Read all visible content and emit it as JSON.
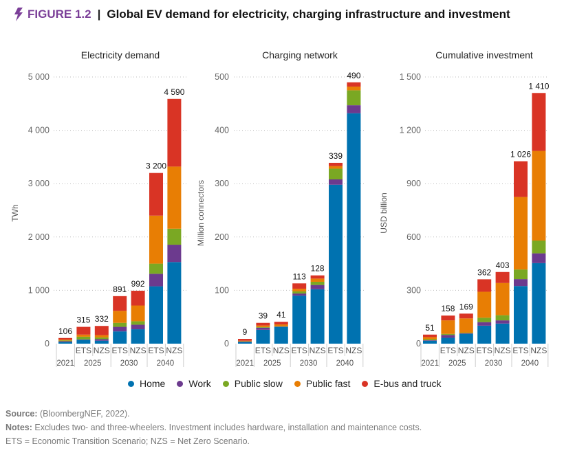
{
  "header": {
    "figure_label": "FIGURE 1.2",
    "separator": "|",
    "title": "Global EV demand for electricity, charging infrastructure and investment",
    "icon": "lightning-bolt-icon",
    "accent_color": "#7b3f98"
  },
  "legend": [
    {
      "name": "Home",
      "color": "#0072b0"
    },
    {
      "name": "Work",
      "color": "#6c3a8e"
    },
    {
      "name": "Public slow",
      "color": "#7aa823"
    },
    {
      "name": "Public fast",
      "color": "#e87e04"
    },
    {
      "name": "E-bus and truck",
      "color": "#d93425"
    }
  ],
  "footer": {
    "source_label": "Source:",
    "source_text": " (BloombergNEF, 2022).",
    "notes_label": "Notes:",
    "notes_text": " Excludes two- and three-wheelers. Investment includes hardware, installation and maintenance costs.",
    "abbreviations": "ETS = Economic Transition Scenario; NZS = Net Zero Scenario."
  },
  "chart_data": [
    {
      "type": "bar",
      "stacked": true,
      "title": "Electricity demand",
      "ylabel": "TWh",
      "ylim": [
        0,
        5000
      ],
      "yticks": [
        "0",
        "1 000",
        "2 000",
        "3 000",
        "4 000",
        "5 000"
      ],
      "grid": true,
      "categories": [
        "",
        "ETS",
        "NZS",
        "ETS",
        "NZS",
        "ETS",
        "NZS"
      ],
      "year_groups": [
        {
          "label": "2021",
          "bars": 1
        },
        {
          "label": "2025",
          "bars": 2
        },
        {
          "label": "2030",
          "bars": 2
        },
        {
          "label": "2040",
          "bars": 2
        }
      ],
      "totals": [
        "106",
        "315",
        "332",
        "891",
        "992",
        "3 200",
        "4 590"
      ],
      "series": [
        {
          "name": "Home",
          "values": [
            30,
            70,
            55,
            230,
            270,
            1075,
            1530
          ]
        },
        {
          "name": "Work",
          "values": [
            15,
            10,
            30,
            85,
            85,
            235,
            325
          ]
        },
        {
          "name": "Public slow",
          "values": [
            15,
            50,
            30,
            75,
            65,
            190,
            300
          ]
        },
        {
          "name": "Public fast",
          "values": [
            15,
            40,
            45,
            225,
            295,
            900,
            1165
          ]
        },
        {
          "name": "E-bus and truck",
          "values": [
            31,
            145,
            172,
            276,
            277,
            800,
            1270
          ]
        }
      ]
    },
    {
      "type": "bar",
      "stacked": true,
      "title": "Charging network",
      "ylabel": "Million connectors",
      "ylim": [
        0,
        500
      ],
      "yticks": [
        "0",
        "100",
        "200",
        "300",
        "400",
        "500"
      ],
      "grid": true,
      "categories": [
        "",
        "ETS",
        "NZS",
        "ETS",
        "NZS",
        "ETS",
        "NZS"
      ],
      "year_groups": [
        {
          "label": "2021",
          "bars": 1
        },
        {
          "label": "2025",
          "bars": 2
        },
        {
          "label": "2030",
          "bars": 2
        },
        {
          "label": "2040",
          "bars": 2
        }
      ],
      "totals": [
        "9",
        "39",
        "41",
        "113",
        "128",
        "339",
        "490"
      ],
      "series": [
        {
          "name": "Home",
          "values": [
            3,
            26,
            31,
            90,
            102,
            298,
            432
          ]
        },
        {
          "name": "Work",
          "values": [
            1,
            4,
            1,
            4,
            8,
            10,
            15
          ]
        },
        {
          "name": "Public slow",
          "values": [
            0.5,
            1,
            1,
            4,
            6,
            20,
            28
          ]
        },
        {
          "name": "Public fast",
          "values": [
            1,
            3,
            3,
            5,
            6,
            5,
            7
          ]
        },
        {
          "name": "E-bus and truck",
          "values": [
            3.5,
            5,
            5,
            10,
            6,
            6,
            8
          ]
        }
      ]
    },
    {
      "type": "bar",
      "stacked": true,
      "title": "Cumulative investment",
      "ylabel": "USD billion",
      "ylim": [
        0,
        1500
      ],
      "yticks": [
        "0",
        "300",
        "600",
        "900",
        "1 200",
        "1 500"
      ],
      "grid": true,
      "categories": [
        "",
        "ETS",
        "NZS",
        "ETS",
        "NZS",
        "ETS",
        "NZS"
      ],
      "year_groups": [
        {
          "label": "2021",
          "bars": 1
        },
        {
          "label": "2025",
          "bars": 2
        },
        {
          "label": "2030",
          "bars": 2
        },
        {
          "label": "2040",
          "bars": 2
        }
      ],
      "totals": [
        "51",
        "158",
        "169",
        "362",
        "403",
        "1 026",
        "1 410"
      ],
      "series": [
        {
          "name": "Home",
          "values": [
            16,
            33,
            55,
            101,
            113,
            324,
            453
          ]
        },
        {
          "name": "Work",
          "values": [
            3,
            16,
            3,
            20,
            18,
            39,
            55
          ]
        },
        {
          "name": "Public slow",
          "values": [
            6,
            6,
            4,
            25,
            29,
            54,
            72
          ]
        },
        {
          "name": "Public fast",
          "values": [
            12,
            76,
            80,
            146,
            181,
            408,
            504
          ]
        },
        {
          "name": "E-bus and truck",
          "values": [
            14,
            27,
            27,
            70,
            62,
            201,
            326
          ]
        }
      ]
    }
  ]
}
